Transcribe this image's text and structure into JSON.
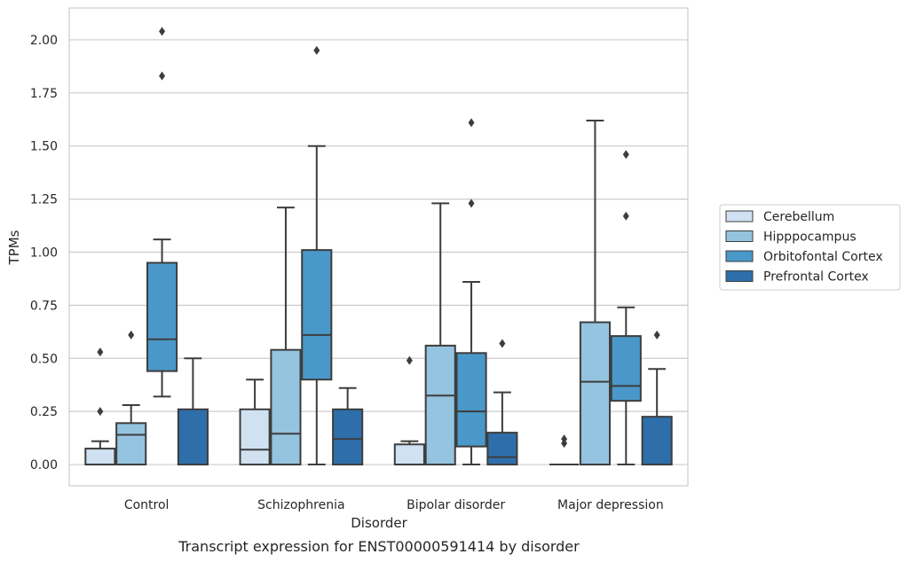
{
  "chart_data": {
    "type": "box",
    "caption": "Transcript expression for ENST00000591414 by disorder",
    "xlabel": "Disorder",
    "ylabel": "TPMs",
    "ylim": [
      -0.1,
      2.15
    ],
    "yticks": [
      0.0,
      0.25,
      0.5,
      0.75,
      1.0,
      1.25,
      1.5,
      1.75,
      2.0
    ],
    "ytick_labels": [
      "0.00",
      "0.25",
      "0.50",
      "0.75",
      "1.00",
      "1.25",
      "1.50",
      "1.75",
      "2.00"
    ],
    "grid": true,
    "legend_position": "right",
    "categories": [
      "Control",
      "Schizophrenia",
      "Bipolar disorder",
      "Major depression"
    ],
    "series": [
      {
        "name": "Cerebellum",
        "color": "#d0e1f2",
        "boxes": [
          {
            "whisker_low": 0.0,
            "q1": 0.0,
            "median": 0.0,
            "q3": 0.075,
            "whisker_high": 0.11,
            "outliers": [
              0.25,
              0.53
            ]
          },
          {
            "whisker_low": 0.0,
            "q1": 0.0,
            "median": 0.07,
            "q3": 0.26,
            "whisker_high": 0.4,
            "outliers": []
          },
          {
            "whisker_low": 0.0,
            "q1": 0.0,
            "median": 0.0,
            "q3": 0.095,
            "whisker_high": 0.11,
            "outliers": [
              0.49
            ]
          },
          {
            "whisker_low": 0.0,
            "q1": 0.0,
            "median": 0.0,
            "q3": 0.0,
            "whisker_high": 0.0,
            "outliers": [
              0.1,
              0.12
            ]
          }
        ]
      },
      {
        "name": "Hipppocampus",
        "color": "#94c4df",
        "boxes": [
          {
            "whisker_low": 0.0,
            "q1": 0.0,
            "median": 0.14,
            "q3": 0.195,
            "whisker_high": 0.28,
            "outliers": [
              0.61
            ]
          },
          {
            "whisker_low": 0.0,
            "q1": 0.0,
            "median": 0.145,
            "q3": 0.54,
            "whisker_high": 1.21,
            "outliers": []
          },
          {
            "whisker_low": 0.0,
            "q1": 0.0,
            "median": 0.325,
            "q3": 0.56,
            "whisker_high": 1.23,
            "outliers": []
          },
          {
            "whisker_low": 0.0,
            "q1": 0.0,
            "median": 0.39,
            "q3": 0.67,
            "whisker_high": 1.62,
            "outliers": []
          }
        ]
      },
      {
        "name": "Orbitofontal Cortex",
        "color": "#4a98c9",
        "boxes": [
          {
            "whisker_low": 0.32,
            "q1": 0.44,
            "median": 0.59,
            "q3": 0.95,
            "whisker_high": 1.06,
            "outliers": [
              1.83,
              2.04
            ]
          },
          {
            "whisker_low": 0.0,
            "q1": 0.4,
            "median": 0.61,
            "q3": 1.01,
            "whisker_high": 1.5,
            "outliers": [
              1.95
            ]
          },
          {
            "whisker_low": 0.0,
            "q1": 0.085,
            "median": 0.25,
            "q3": 0.525,
            "whisker_high": 0.86,
            "outliers": [
              1.23,
              1.61
            ]
          },
          {
            "whisker_low": 0.0,
            "q1": 0.3,
            "median": 0.37,
            "q3": 0.605,
            "whisker_high": 0.74,
            "outliers": [
              1.17,
              1.46
            ]
          }
        ]
      },
      {
        "name": "Prefrontal Cortex",
        "color": "#2e6fab",
        "boxes": [
          {
            "whisker_low": 0.0,
            "q1": 0.0,
            "median": 0.0,
            "q3": 0.26,
            "whisker_high": 0.5,
            "outliers": []
          },
          {
            "whisker_low": 0.0,
            "q1": 0.0,
            "median": 0.12,
            "q3": 0.26,
            "whisker_high": 0.36,
            "outliers": []
          },
          {
            "whisker_low": 0.0,
            "q1": 0.0,
            "median": 0.035,
            "q3": 0.15,
            "whisker_high": 0.34,
            "outliers": [
              0.57
            ]
          },
          {
            "whisker_low": 0.0,
            "q1": 0.0,
            "median": 0.0,
            "q3": 0.225,
            "whisker_high": 0.45,
            "outliers": [
              0.61
            ]
          }
        ]
      }
    ]
  }
}
